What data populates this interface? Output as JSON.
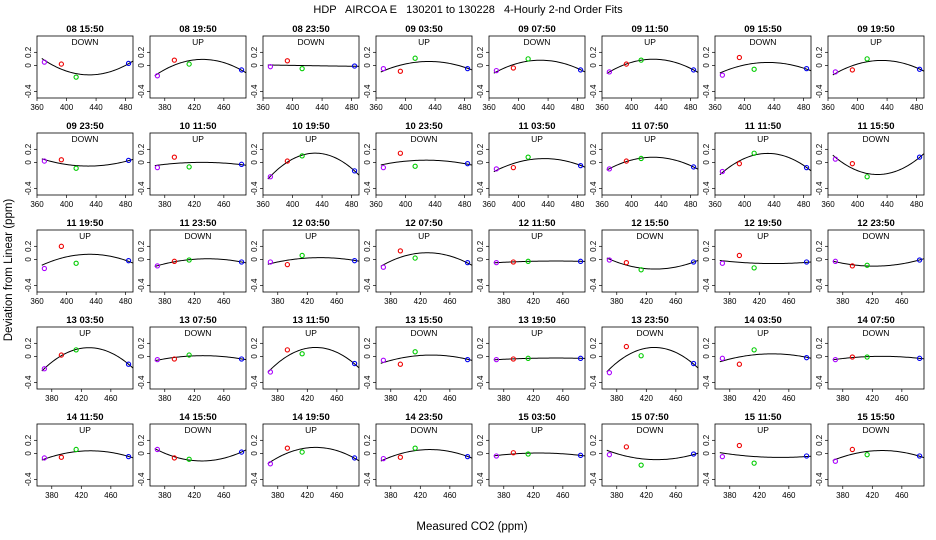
{
  "chart_data": {
    "type": "scatter",
    "title": "HDP   AIRCOA E   130201 to 130228   4-Hourly 2-nd Order Fits",
    "xlabel": "Measured CO2 (ppm)",
    "ylabel": "Deviation from Linear (ppm)",
    "xlim": [
      360,
      490
    ],
    "ylim": [
      -0.5,
      0.45
    ],
    "yticks": [
      -0.4,
      0,
      0.2
    ],
    "xtick_sets": {
      "a": [
        360,
        400,
        440,
        480
      ],
      "b": [
        380,
        420,
        460
      ]
    },
    "point_x": [
      370,
      393,
      413,
      484
    ],
    "point_colors": [
      "#aa00ff",
      "#ee0000",
      "#00cc00",
      "#0000ee"
    ],
    "curve_color": "#000000",
    "panels": [
      {
        "label": "08 15:50",
        "dir": "DOWN",
        "xt": "a",
        "y": [
          0.05,
          0.02,
          -0.18,
          0.03
        ]
      },
      {
        "label": "08 19:50",
        "dir": "UP",
        "xt": "b",
        "y": [
          -0.16,
          0.08,
          0.02,
          -0.07
        ]
      },
      {
        "label": "08 23:50",
        "dir": "DOWN",
        "xt": "a",
        "y": [
          -0.02,
          0.07,
          -0.05,
          -0.01
        ]
      },
      {
        "label": "09 03:50",
        "dir": "UP",
        "xt": "a",
        "y": [
          -0.05,
          -0.09,
          0.11,
          -0.05
        ]
      },
      {
        "label": "09 07:50",
        "dir": "DOWN",
        "xt": "a",
        "y": [
          -0.08,
          -0.04,
          0.1,
          -0.07
        ]
      },
      {
        "label": "09 11:50",
        "dir": "UP",
        "xt": "a",
        "y": [
          -0.1,
          0.02,
          0.08,
          -0.07
        ]
      },
      {
        "label": "09 15:50",
        "dir": "DOWN",
        "xt": "a",
        "y": [
          -0.15,
          0.12,
          -0.06,
          -0.05
        ]
      },
      {
        "label": "09 19:50",
        "dir": "UP",
        "xt": "a",
        "y": [
          -0.1,
          -0.07,
          0.1,
          -0.06
        ]
      },
      {
        "label": "09 23:50",
        "dir": "DOWN",
        "xt": "a",
        "y": [
          0.02,
          0.04,
          -0.09,
          0.03
        ]
      },
      {
        "label": "10 11:50",
        "dir": "UP",
        "xt": "b",
        "y": [
          -0.08,
          0.08,
          -0.07,
          -0.03
        ]
      },
      {
        "label": "10 19:50",
        "dir": "UP",
        "xt": "a",
        "y": [
          -0.22,
          0.02,
          0.1,
          -0.13
        ]
      },
      {
        "label": "10 23:50",
        "dir": "DOWN",
        "xt": "a",
        "y": [
          -0.08,
          0.14,
          -0.06,
          -0.02
        ]
      },
      {
        "label": "11 03:50",
        "dir": "UP",
        "xt": "a",
        "y": [
          -0.1,
          -0.08,
          0.08,
          -0.05
        ]
      },
      {
        "label": "11 07:50",
        "dir": "UP",
        "xt": "a",
        "y": [
          -0.1,
          0.02,
          0.06,
          -0.07
        ]
      },
      {
        "label": "11 11:50",
        "dir": "UP",
        "xt": "a",
        "y": [
          -0.14,
          -0.02,
          0.14,
          -0.08
        ]
      },
      {
        "label": "11 15:50",
        "dir": "DOWN",
        "xt": "a",
        "y": [
          0.05,
          -0.02,
          -0.22,
          0.08
        ]
      },
      {
        "label": "11 19:50",
        "dir": "UP",
        "xt": "a",
        "y": [
          -0.14,
          0.2,
          -0.06,
          -0.02
        ]
      },
      {
        "label": "11 23:50",
        "dir": "DOWN",
        "xt": "b",
        "y": [
          -0.1,
          -0.03,
          -0.01,
          -0.04
        ]
      },
      {
        "label": "12 03:50",
        "dir": "UP",
        "xt": "b",
        "y": [
          -0.04,
          -0.08,
          0.06,
          -0.02
        ]
      },
      {
        "label": "12 07:50",
        "dir": "UP",
        "xt": "b",
        "y": [
          -0.12,
          0.13,
          0.02,
          -0.05
        ]
      },
      {
        "label": "12 11:50",
        "dir": "UP",
        "xt": "b",
        "y": [
          -0.05,
          -0.04,
          -0.03,
          -0.03
        ]
      },
      {
        "label": "12 15:50",
        "dir": "DOWN",
        "xt": "b",
        "y": [
          -0.01,
          -0.05,
          -0.16,
          -0.04
        ]
      },
      {
        "label": "12 19:50",
        "dir": "UP",
        "xt": "b",
        "y": [
          -0.06,
          0.06,
          -0.13,
          -0.04
        ]
      },
      {
        "label": "12 23:50",
        "dir": "DOWN",
        "xt": "b",
        "y": [
          -0.03,
          -0.1,
          -0.09,
          -0.01
        ]
      },
      {
        "label": "13 03:50",
        "dir": "UP",
        "xt": "b",
        "y": [
          -0.19,
          0.02,
          0.1,
          -0.12
        ]
      },
      {
        "label": "13 07:50",
        "dir": "DOWN",
        "xt": "b",
        "y": [
          -0.05,
          -0.04,
          0.02,
          -0.04
        ]
      },
      {
        "label": "13 11:50",
        "dir": "UP",
        "xt": "b",
        "y": [
          -0.24,
          0.1,
          0.04,
          -0.11
        ]
      },
      {
        "label": "13 15:50",
        "dir": "DOWN",
        "xt": "b",
        "y": [
          -0.06,
          -0.12,
          0.07,
          -0.05
        ]
      },
      {
        "label": "13 19:50",
        "dir": "UP",
        "xt": "b",
        "y": [
          -0.05,
          -0.04,
          -0.03,
          -0.03
        ]
      },
      {
        "label": "13 23:50",
        "dir": "DOWN",
        "xt": "b",
        "y": [
          -0.25,
          0.15,
          0.01,
          -0.11
        ]
      },
      {
        "label": "14 03:50",
        "dir": "UP",
        "xt": "b",
        "y": [
          -0.03,
          -0.12,
          0.1,
          -0.02
        ]
      },
      {
        "label": "14 07:50",
        "dir": "DOWN",
        "xt": "b",
        "y": [
          -0.05,
          -0.01,
          -0.01,
          -0.03
        ]
      },
      {
        "label": "14 11:50",
        "dir": "UP",
        "xt": "b",
        "y": [
          -0.07,
          -0.06,
          0.06,
          -0.05
        ]
      },
      {
        "label": "14 15:50",
        "dir": "DOWN",
        "xt": "b",
        "y": [
          0.06,
          -0.07,
          -0.09,
          0.02
        ]
      },
      {
        "label": "14 19:50",
        "dir": "UP",
        "xt": "b",
        "y": [
          -0.16,
          0.08,
          0.02,
          -0.07
        ]
      },
      {
        "label": "14 23:50",
        "dir": "DOWN",
        "xt": "b",
        "y": [
          -0.08,
          -0.06,
          0.08,
          -0.05
        ]
      },
      {
        "label": "15 03:50",
        "dir": "UP",
        "xt": "b",
        "y": [
          -0.04,
          0.01,
          -0.01,
          -0.03
        ]
      },
      {
        "label": "15 07:50",
        "dir": "DOWN",
        "xt": "b",
        "y": [
          -0.02,
          0.1,
          -0.18,
          -0.01
        ]
      },
      {
        "label": "15 11:50",
        "dir": "UP",
        "xt": "b",
        "y": [
          -0.05,
          0.12,
          -0.15,
          -0.04
        ]
      },
      {
        "label": "15 15:50",
        "dir": "DOWN",
        "xt": "b",
        "y": [
          -0.12,
          0.06,
          -0.02,
          -0.04
        ]
      }
    ]
  }
}
